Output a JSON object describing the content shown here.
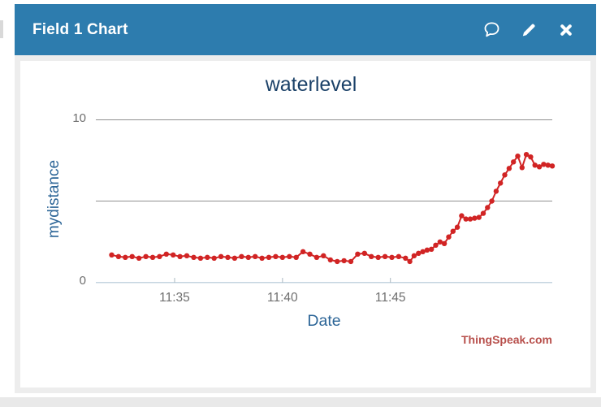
{
  "widget": {
    "header": {
      "title": "Field 1 Chart",
      "background": "#2d7cae",
      "icons": [
        {
          "name": "comment-icon"
        },
        {
          "name": "edit-icon"
        },
        {
          "name": "close-icon"
        }
      ]
    }
  },
  "chart_data": {
    "type": "line",
    "title": "waterlevel",
    "xlabel": "Date",
    "ylabel": "mydistance",
    "watermark": "ThingSpeak.com",
    "ylim": [
      0,
      10
    ],
    "y_ticks": [
      {
        "value": 0,
        "label": "0"
      },
      {
        "value": 10,
        "label": "10"
      }
    ],
    "y_gridlines": [
      5,
      10
    ],
    "x_ticks": [
      {
        "time": "11:35",
        "label": "11:35"
      },
      {
        "time": "11:40",
        "label": "11:40"
      },
      {
        "time": "11:45",
        "label": "11:45"
      }
    ],
    "x_range": [
      "11:31:21",
      "11:52:30"
    ],
    "legend": "none",
    "grid": "horizontal-only",
    "colors": {
      "series": "#d12424",
      "grid": "#909090",
      "axis_line": "#c5d5e0",
      "tick": "#aab8c2",
      "title_text": "#1b4168",
      "axis_label_text": "#2c6597",
      "tick_label_text": "#6e6e6e",
      "watermark_text": "#b8504c"
    },
    "points": [
      [
        "11:32:05",
        1.7
      ],
      [
        "11:32:24",
        1.6
      ],
      [
        "11:32:43",
        1.55
      ],
      [
        "11:33:02",
        1.6
      ],
      [
        "11:33:21",
        1.5
      ],
      [
        "11:33:40",
        1.6
      ],
      [
        "11:33:59",
        1.55
      ],
      [
        "11:34:18",
        1.6
      ],
      [
        "11:34:37",
        1.75
      ],
      [
        "11:34:56",
        1.7
      ],
      [
        "11:35:15",
        1.6
      ],
      [
        "11:35:34",
        1.65
      ],
      [
        "11:35:53",
        1.55
      ],
      [
        "11:36:12",
        1.5
      ],
      [
        "11:36:31",
        1.55
      ],
      [
        "11:36:50",
        1.5
      ],
      [
        "11:37:09",
        1.6
      ],
      [
        "11:37:28",
        1.55
      ],
      [
        "11:37:47",
        1.5
      ],
      [
        "11:38:06",
        1.6
      ],
      [
        "11:38:25",
        1.55
      ],
      [
        "11:38:44",
        1.6
      ],
      [
        "11:39:03",
        1.5
      ],
      [
        "11:39:22",
        1.55
      ],
      [
        "11:39:41",
        1.6
      ],
      [
        "11:40:00",
        1.55
      ],
      [
        "11:40:19",
        1.6
      ],
      [
        "11:40:38",
        1.55
      ],
      [
        "11:40:57",
        1.9
      ],
      [
        "11:41:16",
        1.75
      ],
      [
        "11:41:35",
        1.55
      ],
      [
        "11:41:54",
        1.65
      ],
      [
        "11:42:13",
        1.4
      ],
      [
        "11:42:32",
        1.3
      ],
      [
        "11:42:51",
        1.35
      ],
      [
        "11:43:10",
        1.3
      ],
      [
        "11:43:29",
        1.75
      ],
      [
        "11:43:48",
        1.8
      ],
      [
        "11:44:07",
        1.6
      ],
      [
        "11:44:26",
        1.55
      ],
      [
        "11:44:45",
        1.6
      ],
      [
        "11:45:04",
        1.55
      ],
      [
        "11:45:23",
        1.6
      ],
      [
        "11:45:42",
        1.5
      ],
      [
        "11:45:54",
        1.3
      ],
      [
        "11:46:06",
        1.65
      ],
      [
        "11:46:18",
        1.8
      ],
      [
        "11:46:30",
        1.9
      ],
      [
        "11:46:42",
        2.0
      ],
      [
        "11:46:54",
        2.05
      ],
      [
        "11:47:06",
        2.3
      ],
      [
        "11:47:18",
        2.5
      ],
      [
        "11:47:30",
        2.4
      ],
      [
        "11:47:42",
        2.8
      ],
      [
        "11:47:54",
        3.15
      ],
      [
        "11:48:06",
        3.4
      ],
      [
        "11:48:18",
        4.1
      ],
      [
        "11:48:30",
        3.9
      ],
      [
        "11:48:42",
        3.9
      ],
      [
        "11:48:54",
        3.95
      ],
      [
        "11:49:06",
        4.0
      ],
      [
        "11:49:18",
        4.25
      ],
      [
        "11:49:30",
        4.6
      ],
      [
        "11:49:42",
        5.0
      ],
      [
        "11:49:54",
        5.6
      ],
      [
        "11:50:06",
        6.1
      ],
      [
        "11:50:18",
        6.6
      ],
      [
        "11:50:30",
        7.0
      ],
      [
        "11:50:42",
        7.4
      ],
      [
        "11:50:54",
        7.75
      ],
      [
        "11:51:06",
        7.05
      ],
      [
        "11:51:18",
        7.85
      ],
      [
        "11:51:30",
        7.7
      ],
      [
        "11:51:42",
        7.2
      ],
      [
        "11:51:54",
        7.1
      ],
      [
        "11:52:06",
        7.25
      ],
      [
        "11:52:18",
        7.2
      ],
      [
        "11:52:30",
        7.15
      ]
    ]
  }
}
